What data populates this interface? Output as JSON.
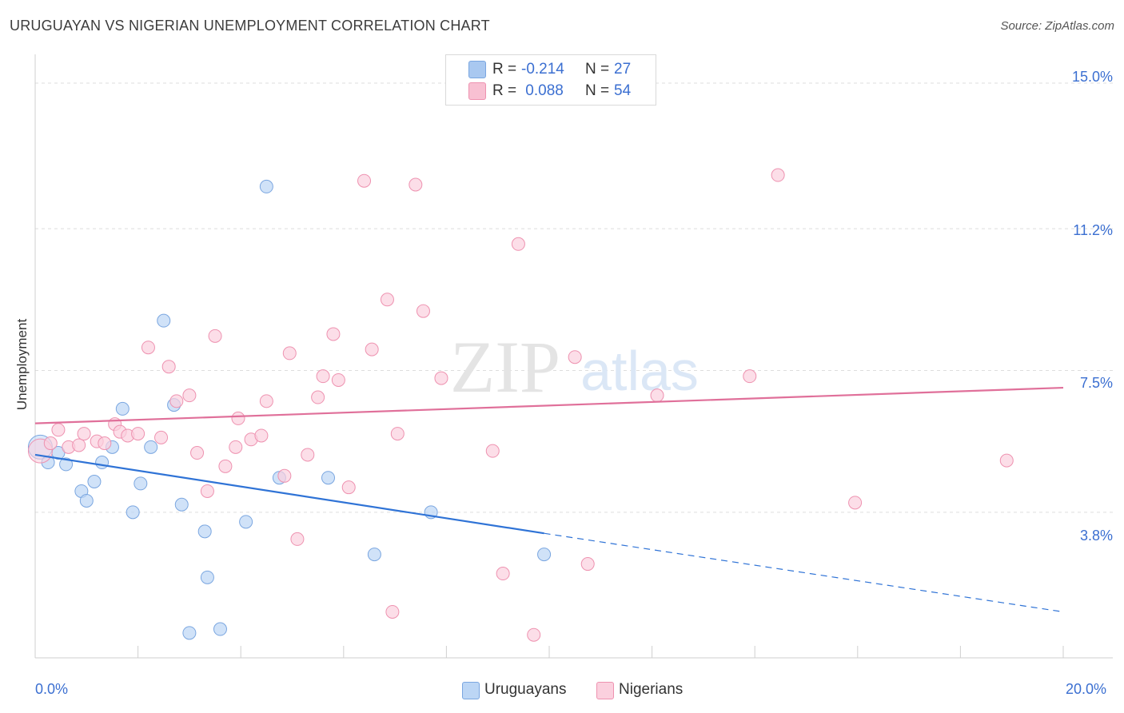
{
  "header": {
    "title": "URUGUAYAN VS NIGERIAN UNEMPLOYMENT CORRELATION CHART",
    "source": "Source: ZipAtlas.com"
  },
  "watermark": {
    "zip": "ZIP",
    "atlas": "atlas"
  },
  "legend": {
    "rows": [
      {
        "r_label": "R = ",
        "r_value": "-0.214",
        "n_label": "N = ",
        "n_value": "27",
        "color": "#a9c8f0",
        "border": "#7aa6e0"
      },
      {
        "r_label": "R = ",
        "r_value": " 0.088",
        "n_label": "N = ",
        "n_value": "54",
        "color": "#f8c0d2",
        "border": "#ee92b0"
      }
    ]
  },
  "bottom_legend": [
    {
      "label": "Uruguayans",
      "color": "#bcd6f5",
      "border": "#7aa6e0"
    },
    {
      "label": "Nigerians",
      "color": "#fbd0de",
      "border": "#ee92b0"
    }
  ],
  "chart_data": {
    "type": "scatter",
    "title": "URUGUAYAN VS NIGERIAN UNEMPLOYMENT CORRELATION CHART",
    "xlabel": "",
    "ylabel": "Unemployment",
    "xlim": [
      0,
      20
    ],
    "ylim": [
      0,
      15.5
    ],
    "x_tick_labels": [
      "0.0%",
      "20.0%"
    ],
    "y_ticks": [
      3.8,
      7.5,
      11.2,
      15.0
    ],
    "y_tick_labels": [
      "3.8%",
      "7.5%",
      "11.2%",
      "15.0%"
    ],
    "grid": true,
    "series": [
      {
        "name": "Uruguayans",
        "color": "#7aa6e0",
        "fill": "#bcd6f5",
        "points": [
          [
            0.1,
            5.5
          ],
          [
            0.25,
            5.1
          ],
          [
            0.45,
            5.35
          ],
          [
            0.6,
            5.05
          ],
          [
            0.9,
            4.35
          ],
          [
            1.0,
            4.1
          ],
          [
            1.15,
            4.6
          ],
          [
            1.3,
            5.1
          ],
          [
            1.5,
            5.5
          ],
          [
            1.7,
            6.5
          ],
          [
            1.9,
            3.8
          ],
          [
            2.05,
            4.55
          ],
          [
            2.25,
            5.5
          ],
          [
            2.5,
            8.8
          ],
          [
            2.7,
            6.6
          ],
          [
            2.85,
            4.0
          ],
          [
            3.0,
            0.65
          ],
          [
            3.3,
            3.3
          ],
          [
            3.35,
            2.1
          ],
          [
            3.6,
            0.75
          ],
          [
            4.1,
            3.55
          ],
          [
            4.5,
            12.3
          ],
          [
            4.75,
            4.7
          ],
          [
            5.7,
            4.7
          ],
          [
            6.6,
            2.7
          ],
          [
            7.7,
            3.8
          ],
          [
            9.9,
            2.7
          ]
        ],
        "trend": {
          "x1": 0,
          "y1": 5.3,
          "x2": 9.9,
          "y2": 3.25,
          "dash_to_x": 20,
          "dash_to_y": 1.2
        }
      },
      {
        "name": "Nigerians",
        "color": "#ee92b0",
        "fill": "#fbd0de",
        "points": [
          [
            0.1,
            5.4
          ],
          [
            0.3,
            5.6
          ],
          [
            0.45,
            5.95
          ],
          [
            0.65,
            5.5
          ],
          [
            0.85,
            5.55
          ],
          [
            0.95,
            5.85
          ],
          [
            1.2,
            5.65
          ],
          [
            1.35,
            5.6
          ],
          [
            1.55,
            6.1
          ],
          [
            1.65,
            5.9
          ],
          [
            1.8,
            5.8
          ],
          [
            2.0,
            5.85
          ],
          [
            2.2,
            8.1
          ],
          [
            2.45,
            5.75
          ],
          [
            2.6,
            7.6
          ],
          [
            2.75,
            6.7
          ],
          [
            3.0,
            6.85
          ],
          [
            3.15,
            5.35
          ],
          [
            3.35,
            4.35
          ],
          [
            3.5,
            8.4
          ],
          [
            3.7,
            5.0
          ],
          [
            3.9,
            5.5
          ],
          [
            3.95,
            6.25
          ],
          [
            4.2,
            5.7
          ],
          [
            4.4,
            5.8
          ],
          [
            4.5,
            6.7
          ],
          [
            4.85,
            4.75
          ],
          [
            4.95,
            7.95
          ],
          [
            5.1,
            3.1
          ],
          [
            5.3,
            5.3
          ],
          [
            5.5,
            6.8
          ],
          [
            5.6,
            7.35
          ],
          [
            5.8,
            8.45
          ],
          [
            5.9,
            7.25
          ],
          [
            6.1,
            4.45
          ],
          [
            6.4,
            12.45
          ],
          [
            6.55,
            8.05
          ],
          [
            6.85,
            9.35
          ],
          [
            6.95,
            1.2
          ],
          [
            7.05,
            5.85
          ],
          [
            7.4,
            12.35
          ],
          [
            7.55,
            9.05
          ],
          [
            7.9,
            7.3
          ],
          [
            8.9,
            5.4
          ],
          [
            9.1,
            2.2
          ],
          [
            9.4,
            10.8
          ],
          [
            9.7,
            0.6
          ],
          [
            10.5,
            7.85
          ],
          [
            10.75,
            2.45
          ],
          [
            12.1,
            6.85
          ],
          [
            13.9,
            7.35
          ],
          [
            14.45,
            12.6
          ],
          [
            15.95,
            4.05
          ],
          [
            18.9,
            5.15
          ]
        ],
        "trend": {
          "x1": 0,
          "y1": 6.12,
          "x2": 20,
          "y2": 7.05
        }
      }
    ]
  }
}
